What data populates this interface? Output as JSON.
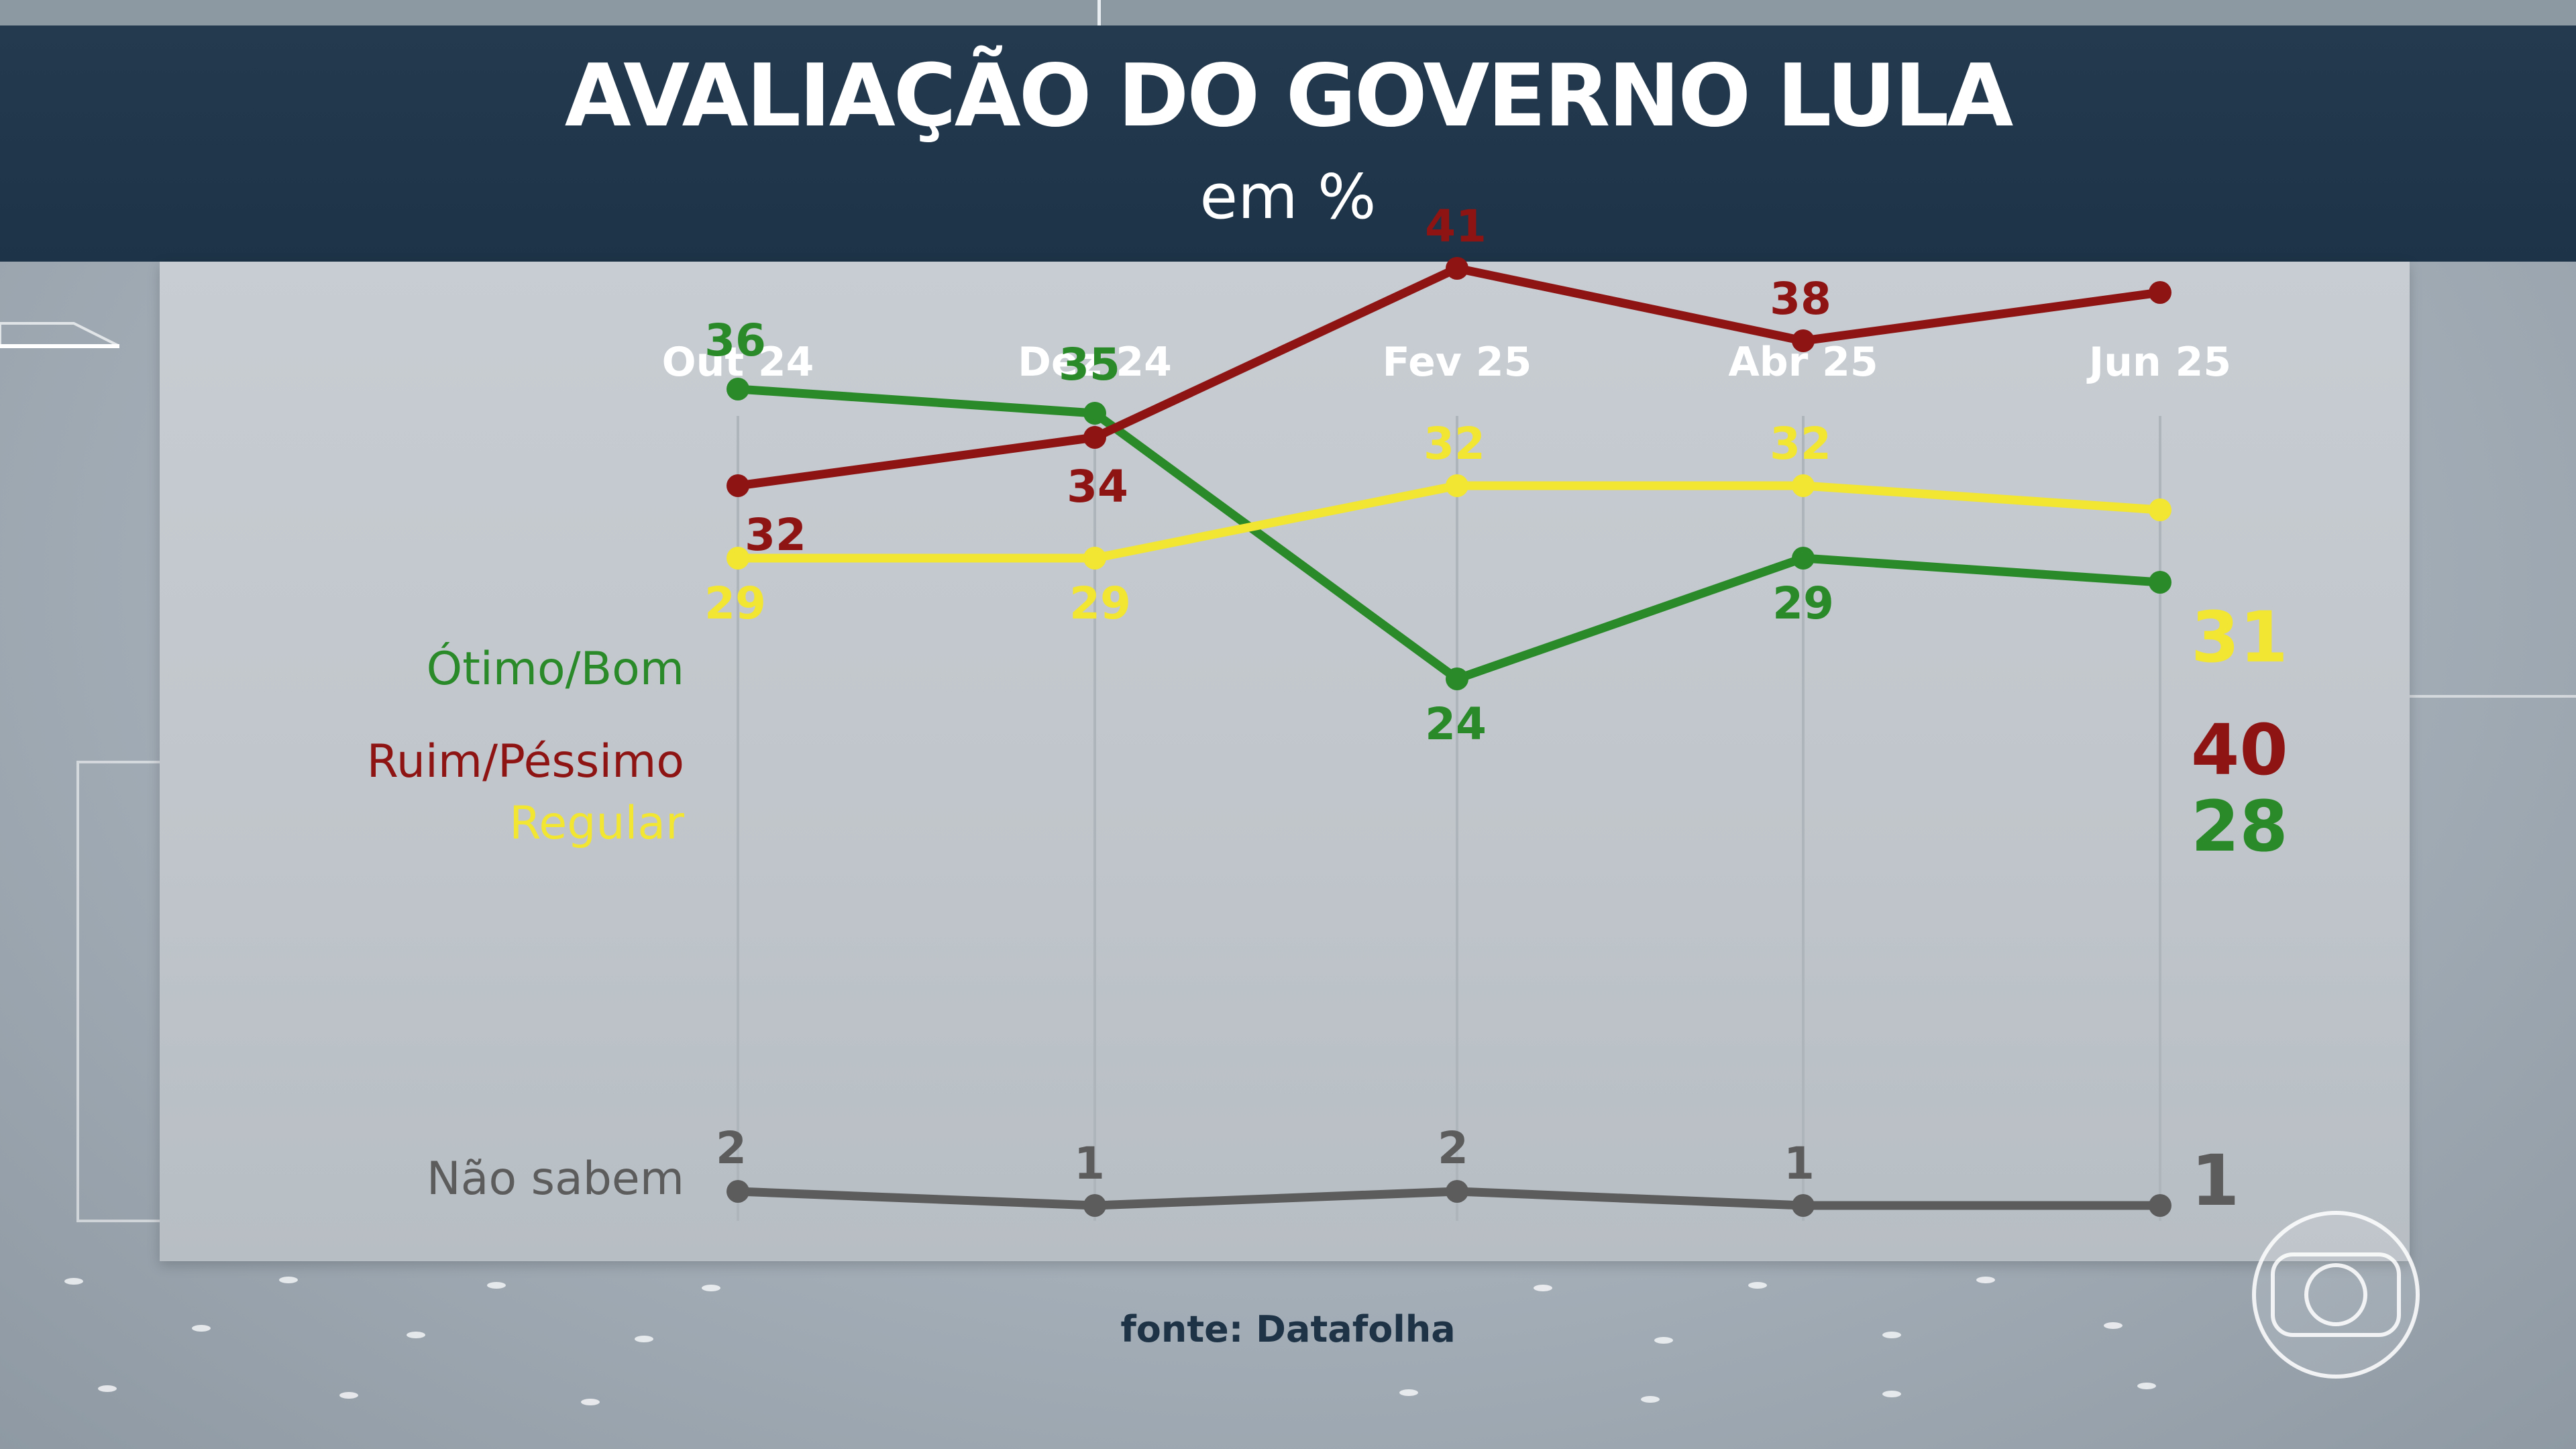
{
  "header": {
    "title": "AVALIAÇÃO DO GOVERNO LULA",
    "subtitle": "em %"
  },
  "source": "fonte: Datafolha",
  "icons": {
    "broadcaster_logo": "globo-logo-icon"
  },
  "colors": {
    "header_bg": "#1f3549",
    "otimo_bom": "#2a8a2a",
    "ruim_pessimo": "#8e1414",
    "regular": "#f2e632",
    "nao_sabem": "#5c5c5c"
  },
  "chart_data": {
    "type": "line",
    "title": "AVALIAÇÃO DO GOVERNO LULA",
    "subtitle": "em %",
    "categories": [
      "Out 24",
      "Dez 24",
      "Fev 25",
      "Abr 25",
      "Jun 25"
    ],
    "series": [
      {
        "name": "Ótimo/Bom",
        "values": [
          36,
          35,
          24,
          29,
          28
        ],
        "color": "#2a8a2a"
      },
      {
        "name": "Ruim/Péssimo",
        "values": [
          32,
          34,
          41,
          38,
          40
        ],
        "color": "#8e1414"
      },
      {
        "name": "Regular",
        "values": [
          29,
          29,
          32,
          32,
          31
        ],
        "color": "#f2e632"
      },
      {
        "name": "Não sabem",
        "values": [
          2,
          1,
          2,
          1,
          1
        ],
        "color": "#5c5c5c"
      }
    ],
    "grid": "vertical",
    "legend": "left, inline labels"
  }
}
